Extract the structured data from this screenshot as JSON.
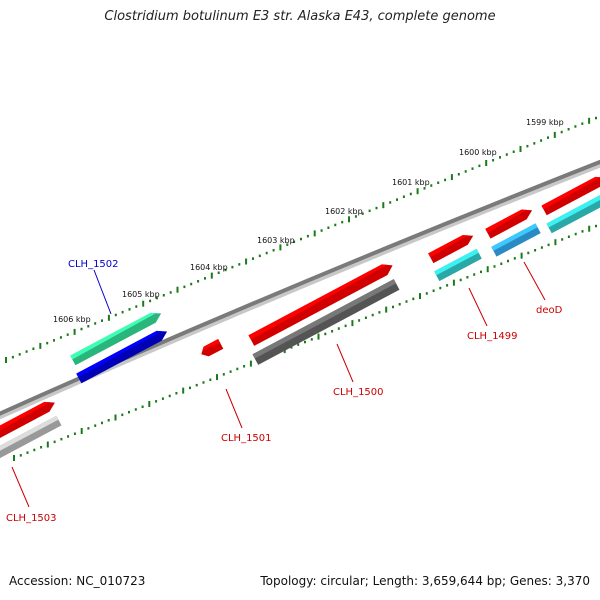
{
  "title": "Clostridium botulinum E3 str. Alaska E43, complete genome",
  "footer": {
    "accession": "Accession: NC_010723",
    "summary": "Topology: circular; Length: 3,659,644 bp; Genes: 3,370"
  },
  "ruler_labels": [
    "1599 kbp",
    "1600 kbp",
    "1601 kbp",
    "1602 kbp",
    "1603 kbp",
    "1604 kbp",
    "1605 kbp",
    "1606 kbp"
  ],
  "genes": [
    {
      "label": "CLH_1502",
      "label_color": "#0000cc"
    },
    {
      "label": "CLH_1503",
      "label_color": "#cc0000"
    },
    {
      "label": "CLH_1501",
      "label_color": "#cc0000"
    },
    {
      "label": "CLH_1500",
      "label_color": "#cc0000"
    },
    {
      "label": "CLH_1499",
      "label_color": "#cc0000"
    },
    {
      "label": "deoD",
      "label_color": "#cc0000"
    }
  ],
  "colors": {
    "backbone": "#808080",
    "tick": "#1a7a1a",
    "cds": "#ff0000",
    "rna_teal": "#33cccc",
    "rna_sky": "#33aaee",
    "rna_green": "#33dd99",
    "rna_blue": "#0000dd",
    "gray_dark": "#666666",
    "gray_light": "#bbbbbb"
  }
}
